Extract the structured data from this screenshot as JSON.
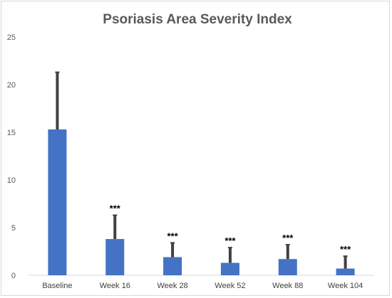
{
  "chart_data": {
    "type": "bar",
    "title": "Psoriasis Area Severity Index",
    "xlabel": "",
    "ylabel": "",
    "categories": [
      "Baseline",
      "Week 16",
      "Week 28",
      "Week 52",
      "Week 88",
      "Week 104"
    ],
    "values": [
      15.3,
      3.8,
      1.9,
      1.3,
      1.7,
      0.7
    ],
    "error_upper": [
      6.0,
      2.5,
      1.5,
      1.6,
      1.5,
      1.3
    ],
    "annotations": [
      "",
      "***",
      "***",
      "***",
      "***",
      "***"
    ],
    "ylim": [
      0,
      25
    ],
    "yticks": [
      "0",
      "5",
      "10",
      "15",
      "20",
      "25"
    ],
    "grid": false,
    "legend": "none",
    "colors": {
      "bar": "#4472c4",
      "error_bar": "#404040",
      "axis": "#d9d9d9"
    }
  }
}
